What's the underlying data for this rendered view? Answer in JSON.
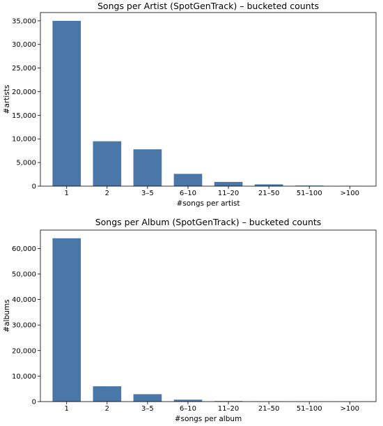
{
  "chart_data": [
    {
      "type": "bar",
      "title": "Songs per Artist (SpotGenTrack) – bucketed counts",
      "xlabel": "#songs per artist",
      "ylabel": "#artists",
      "categories": [
        "1",
        "2",
        "3–5",
        "6–10",
        "11–20",
        "21–50",
        "51–100",
        ">100"
      ],
      "values": [
        35000,
        9500,
        7800,
        2600,
        900,
        380,
        120,
        30
      ],
      "ylim": [
        0,
        36750
      ],
      "yticks": [
        0,
        5000,
        10000,
        15000,
        20000,
        25000,
        30000,
        35000
      ],
      "ytick_labels": [
        "0",
        "5,000",
        "10,000",
        "15,000",
        "20,000",
        "25,000",
        "30,000",
        "35,000"
      ],
      "bar_color": "#4a76a8",
      "grid": false
    },
    {
      "type": "bar",
      "title": "Songs per Album (SpotGenTrack) – bucketed counts",
      "xlabel": "#songs per album",
      "ylabel": "#albums",
      "categories": [
        "1",
        "2",
        "3–5",
        "6–10",
        "11–20",
        "21–50",
        "51–100",
        ">100"
      ],
      "values": [
        64000,
        6000,
        2900,
        750,
        200,
        60,
        20,
        10
      ],
      "ylim": [
        0,
        67200
      ],
      "yticks": [
        0,
        10000,
        20000,
        30000,
        40000,
        50000,
        60000
      ],
      "ytick_labels": [
        "0",
        "10,000",
        "20,000",
        "30,000",
        "40,000",
        "50,000",
        "60,000"
      ],
      "bar_color": "#4a76a8",
      "grid": false
    }
  ]
}
